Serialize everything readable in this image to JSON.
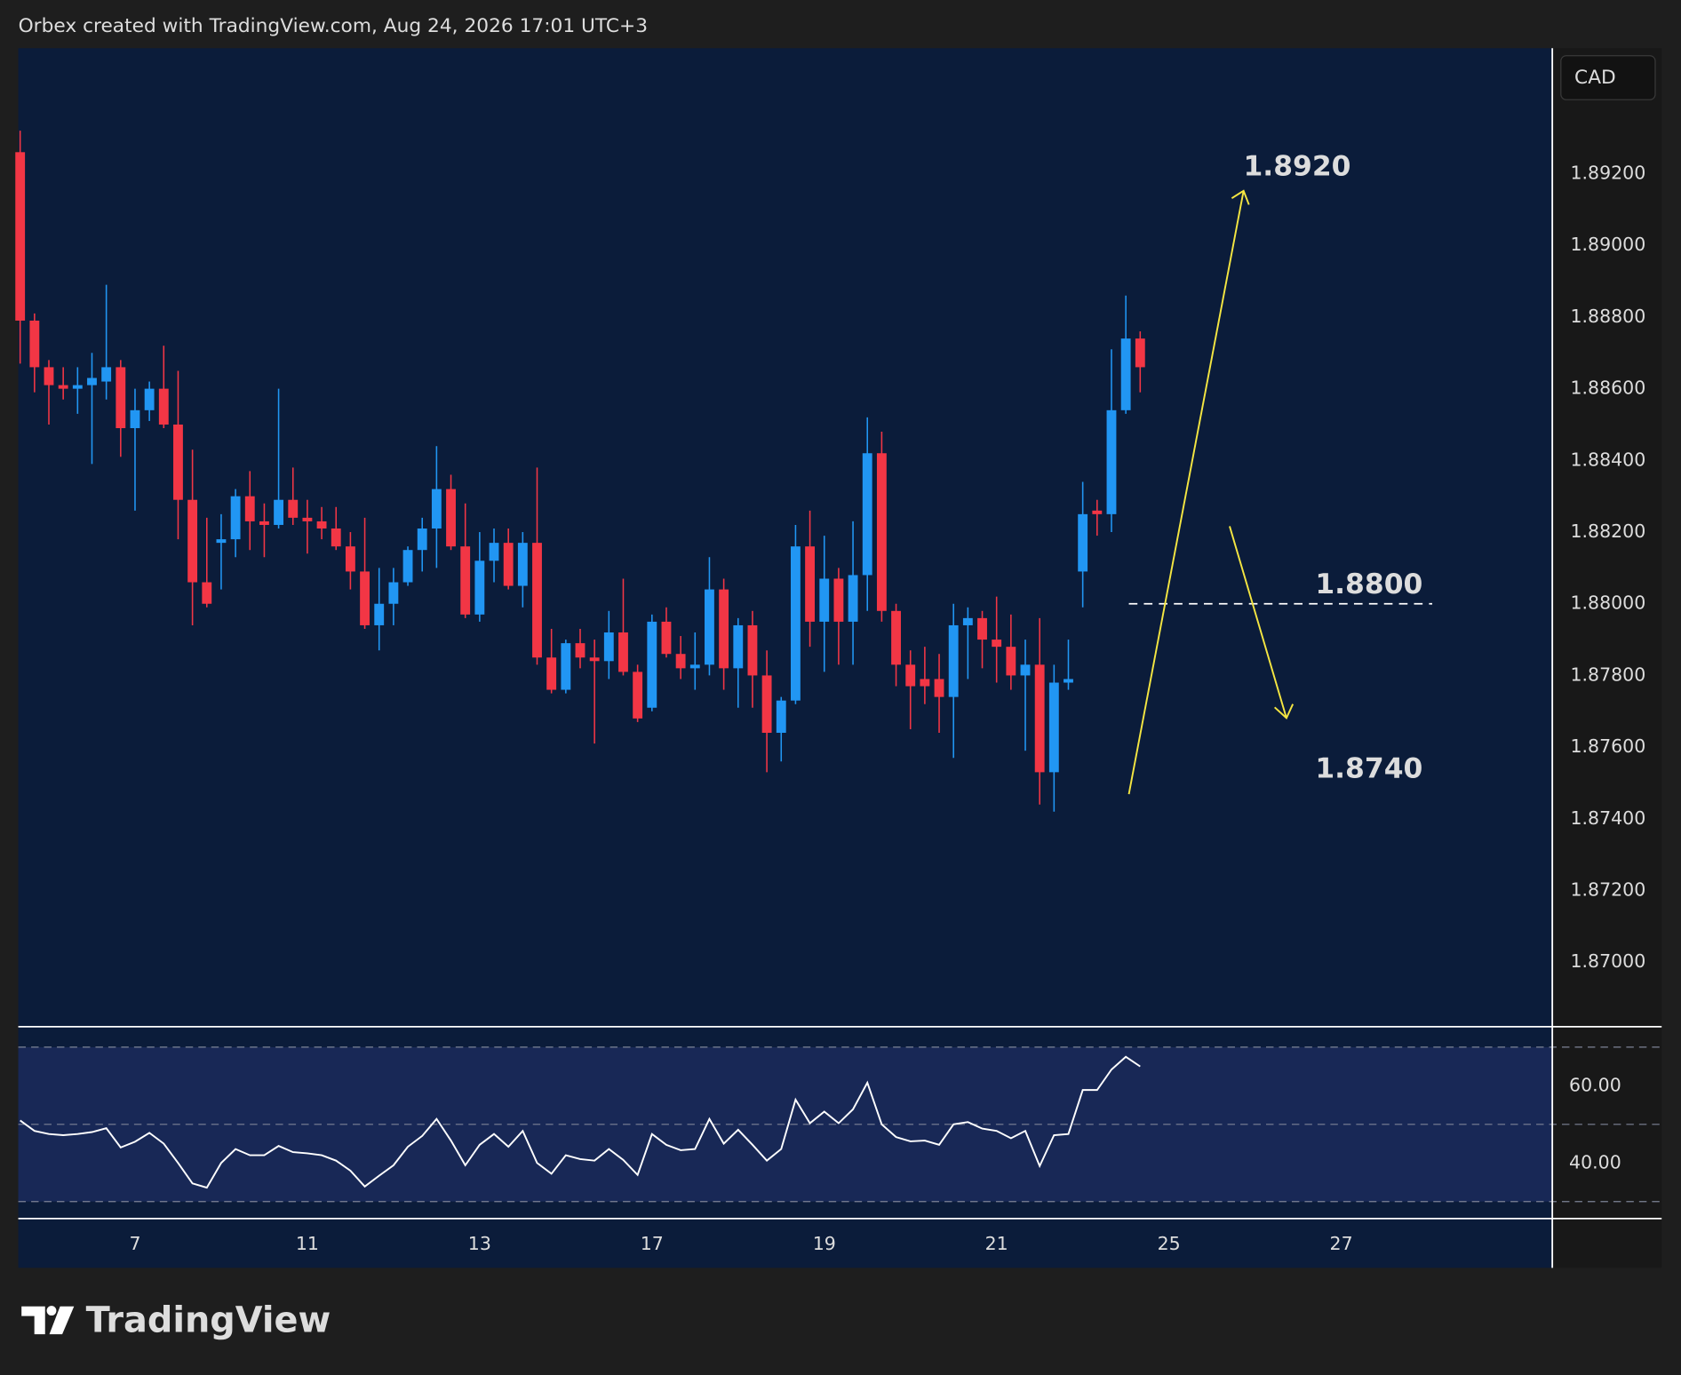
{
  "header": "Orbex created with TradingView.com, Aug 24, 2026 17:01 UTC+3",
  "logo": "TradingView",
  "chart_data": [
    {
      "type": "candlestick",
      "currency": "CAD",
      "up_color": "#2196f3",
      "down_color": "#f23645",
      "open": [
        1.8926,
        1.8879,
        1.8866,
        1.8861,
        1.886,
        1.8861,
        1.8862,
        1.8866,
        1.8849,
        1.8854,
        1.886,
        1.885,
        1.8829,
        1.8806,
        1.8817,
        1.8818,
        1.883,
        1.8823,
        1.8822,
        1.8829,
        1.8824,
        1.8823,
        1.8821,
        1.8816,
        1.8809,
        1.8794,
        1.88,
        1.8806,
        1.8815,
        1.8821,
        1.8832,
        1.8816,
        1.8797,
        1.8812,
        1.8817,
        1.8805,
        1.8817,
        1.8785,
        1.8776,
        1.8789,
        1.8785,
        1.8784,
        1.8792,
        1.8781,
        1.8771,
        1.8795,
        1.8786,
        1.8782,
        1.8783,
        1.8804,
        1.8782,
        1.8794,
        1.878,
        1.8764,
        1.8773,
        1.8816,
        1.8795,
        1.8807,
        1.8795,
        1.8808,
        1.8842,
        1.8798,
        1.8783,
        1.8779,
        1.8779,
        1.8774,
        1.8794,
        1.8796,
        1.879,
        1.8788,
        1.878,
        1.8783,
        1.8753,
        1.8778,
        1.8809,
        1.8826,
        1.8825,
        1.8854,
        1.8874
      ],
      "high": [
        1.8932,
        1.8881,
        1.8868,
        1.8866,
        1.8866,
        1.887,
        1.8889,
        1.8868,
        1.886,
        1.8862,
        1.8872,
        1.8865,
        1.8843,
        1.8824,
        1.8825,
        1.8832,
        1.8837,
        1.8828,
        1.886,
        1.8838,
        1.8829,
        1.8827,
        1.8827,
        1.882,
        1.8824,
        1.881,
        1.881,
        1.8816,
        1.8824,
        1.8844,
        1.8836,
        1.8828,
        1.882,
        1.8821,
        1.8821,
        1.882,
        1.8838,
        1.8793,
        1.879,
        1.8793,
        1.879,
        1.8798,
        1.8807,
        1.8783,
        1.8797,
        1.8799,
        1.8791,
        1.8792,
        1.8813,
        1.8807,
        1.8796,
        1.8798,
        1.8787,
        1.8774,
        1.8822,
        1.8826,
        1.8819,
        1.881,
        1.8823,
        1.8852,
        1.8848,
        1.88,
        1.8787,
        1.8788,
        1.8786,
        1.88,
        1.8799,
        1.8798,
        1.8802,
        1.8797,
        1.879,
        1.8796,
        1.8783,
        1.879,
        1.8834,
        1.8829,
        1.8871,
        1.8886,
        1.8876
      ],
      "low": [
        1.8867,
        1.8859,
        1.885,
        1.8857,
        1.8853,
        1.8839,
        1.8857,
        1.8841,
        1.8826,
        1.8851,
        1.8849,
        1.8818,
        1.8794,
        1.8799,
        1.8804,
        1.8813,
        1.8815,
        1.8813,
        1.8821,
        1.8822,
        1.8814,
        1.8818,
        1.8815,
        1.8804,
        1.8793,
        1.8787,
        1.8794,
        1.8805,
        1.8809,
        1.881,
        1.8815,
        1.8796,
        1.8795,
        1.8806,
        1.8804,
        1.8799,
        1.8783,
        1.8775,
        1.8775,
        1.8782,
        1.8761,
        1.8779,
        1.878,
        1.8767,
        1.877,
        1.8785,
        1.8779,
        1.8776,
        1.878,
        1.8776,
        1.8771,
        1.8771,
        1.8753,
        1.8756,
        1.8772,
        1.8788,
        1.8781,
        1.8783,
        1.8783,
        1.8798,
        1.8795,
        1.8777,
        1.8765,
        1.8772,
        1.8764,
        1.8757,
        1.8779,
        1.8782,
        1.8778,
        1.8776,
        1.8759,
        1.8744,
        1.8742,
        1.8776,
        1.8799,
        1.8819,
        1.882,
        1.8853,
        1.8859
      ],
      "close": [
        1.8879,
        1.8866,
        1.8861,
        1.886,
        1.8861,
        1.8863,
        1.8866,
        1.8849,
        1.8854,
        1.886,
        1.885,
        1.8829,
        1.8806,
        1.88,
        1.8818,
        1.883,
        1.8823,
        1.8822,
        1.8829,
        1.8824,
        1.8823,
        1.8821,
        1.8816,
        1.8809,
        1.8794,
        1.88,
        1.8806,
        1.8815,
        1.8821,
        1.8832,
        1.8816,
        1.8797,
        1.8812,
        1.8817,
        1.8805,
        1.8817,
        1.8785,
        1.8776,
        1.8789,
        1.8785,
        1.8784,
        1.8792,
        1.8781,
        1.8768,
        1.8795,
        1.8786,
        1.8782,
        1.8783,
        1.8804,
        1.8782,
        1.8794,
        1.878,
        1.8764,
        1.8773,
        1.8816,
        1.8795,
        1.8807,
        1.8795,
        1.8808,
        1.8842,
        1.8798,
        1.8783,
        1.8777,
        1.8777,
        1.8774,
        1.8794,
        1.8796,
        1.879,
        1.8788,
        1.878,
        1.8783,
        1.8753,
        1.8778,
        1.8779,
        1.8825,
        1.8825,
        1.8854,
        1.8874,
        1.8866
      ],
      "xlim": [
        -0.13,
        106.7
      ],
      "xticks": [
        {
          "value": 8,
          "label": "7"
        },
        {
          "value": 20,
          "label": "11"
        },
        {
          "value": 32,
          "label": "13"
        },
        {
          "value": 44,
          "label": "17"
        },
        {
          "value": 56,
          "label": "19"
        },
        {
          "value": 68,
          "label": "21"
        },
        {
          "value": 80,
          "label": "25"
        },
        {
          "value": 92,
          "label": "27"
        }
      ],
      "ylim": [
        1.8682,
        1.8955
      ],
      "yticks": [
        {
          "value": 1.87,
          "label": "1.87000"
        },
        {
          "value": 1.872,
          "label": "1.87200"
        },
        {
          "value": 1.874,
          "label": "1.87400"
        },
        {
          "value": 1.876,
          "label": "1.87600"
        },
        {
          "value": 1.878,
          "label": "1.87800"
        },
        {
          "value": 1.88,
          "label": "1.88000"
        },
        {
          "value": 1.882,
          "label": "1.88200"
        },
        {
          "value": 1.884,
          "label": "1.88400"
        },
        {
          "value": 1.886,
          "label": "1.88600"
        },
        {
          "value": 1.888,
          "label": "1.88800"
        },
        {
          "value": 1.89,
          "label": "1.89000"
        },
        {
          "value": 1.892,
          "label": "1.89200"
        }
      ],
      "grid": false,
      "annotations": [
        {
          "value": 1.892,
          "label": "1.8920"
        },
        {
          "value": 1.88,
          "label": "1.8800",
          "line": true
        },
        {
          "value": 1.874,
          "label": "1.8740"
        }
      ]
    },
    {
      "type": "line",
      "color": "#ffffff",
      "values": [
        51,
        48.3,
        47.5,
        47.2,
        47.5,
        48,
        49,
        44,
        45.5,
        47.8,
        45,
        40,
        34.7,
        33.6,
        40,
        43.6,
        42,
        42,
        44.4,
        42.8,
        42.5,
        42,
        40.6,
        38,
        33.9,
        36.7,
        39.4,
        44.2,
        47,
        51.4,
        45.8,
        39.4,
        44.7,
        47.5,
        44.2,
        48.3,
        40,
        37.2,
        42,
        41,
        40.6,
        43.6,
        40.8,
        36.9,
        47.5,
        44.7,
        43.3,
        43.6,
        51.4,
        45,
        48.6,
        44.7,
        40.6,
        43.6,
        56.4,
        50.3,
        53.3,
        50.3,
        53.9,
        60.8,
        50,
        46.7,
        45.6,
        45.8,
        44.7,
        50,
        50.6,
        48.9,
        48.3,
        46.4,
        48.3,
        39.2,
        47.2,
        47.5,
        58.9,
        58.9,
        64.2,
        67.5,
        65
      ],
      "ylim": [
        25.6,
        75.3
      ],
      "yticks": [
        {
          "value": 40,
          "label": "40.00"
        },
        {
          "value": 60,
          "label": "60.00"
        }
      ],
      "levels": [
        30,
        50,
        70
      ]
    }
  ]
}
